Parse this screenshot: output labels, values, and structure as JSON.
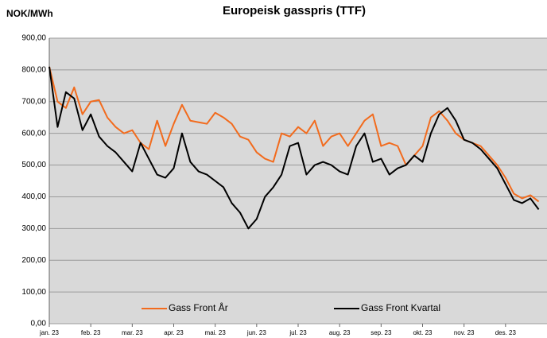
{
  "chart_data": {
    "type": "line",
    "title": "Europeisk gasspris (TTF)",
    "y_label": "NOK/MWh",
    "categories": [
      "jan. 23",
      null,
      null,
      null,
      null,
      "feb. 23",
      null,
      null,
      null,
      null,
      "mar. 23",
      null,
      null,
      null,
      null,
      "apr. 23",
      null,
      null,
      null,
      null,
      "mai. 23",
      null,
      null,
      null,
      null,
      "jun. 23",
      null,
      null,
      null,
      null,
      "jul. 23",
      null,
      null,
      null,
      null,
      "aug. 23",
      null,
      null,
      null,
      null,
      "sep. 23",
      null,
      null,
      null,
      null,
      "okt. 23",
      null,
      null,
      null,
      null,
      "nov. 23",
      null,
      null,
      null,
      null,
      "des. 23",
      null,
      null,
      null,
      null
    ],
    "series": [
      {
        "name": "Gass Front År",
        "color": "#f26b1d",
        "values": [
          810,
          700,
          680,
          745,
          660,
          700,
          705,
          650,
          620,
          600,
          610,
          570,
          550,
          640,
          560,
          630,
          690,
          640,
          635,
          630,
          665,
          650,
          630,
          590,
          580,
          540,
          520,
          510,
          600,
          590,
          620,
          600,
          640,
          560,
          590,
          600,
          560,
          600,
          640,
          660,
          560,
          570,
          560,
          500,
          530,
          560,
          650,
          670,
          640,
          600,
          580,
          570,
          560,
          530,
          500,
          460,
          410,
          395,
          405,
          385
        ]
      },
      {
        "name": "Gass Front Kvartal",
        "color": "#000000",
        "values": [
          810,
          620,
          730,
          710,
          610,
          660,
          590,
          560,
          540,
          510,
          480,
          570,
          520,
          470,
          460,
          490,
          600,
          510,
          480,
          470,
          450,
          430,
          380,
          350,
          300,
          330,
          400,
          430,
          470,
          560,
          570,
          470,
          500,
          510,
          500,
          480,
          470,
          560,
          600,
          510,
          520,
          470,
          490,
          500,
          530,
          510,
          600,
          660,
          680,
          640,
          580,
          570,
          550,
          520,
          490,
          440,
          390,
          380,
          395,
          360
        ]
      }
    ],
    "ylim": [
      0,
      900
    ],
    "yticks": [
      {
        "value": 0,
        "label": "0,00"
      },
      {
        "value": 100,
        "label": "100,00"
      },
      {
        "value": 200,
        "label": "200,00"
      },
      {
        "value": 300,
        "label": "300,00"
      },
      {
        "value": 400,
        "label": "400,00"
      },
      {
        "value": 500,
        "label": "500,00"
      },
      {
        "value": 600,
        "label": "600,00"
      },
      {
        "value": 700,
        "label": "700,00"
      },
      {
        "value": 800,
        "label": "800,00"
      },
      {
        "value": 900,
        "label": "900,00"
      }
    ],
    "grid": true,
    "legend": "bottom"
  }
}
